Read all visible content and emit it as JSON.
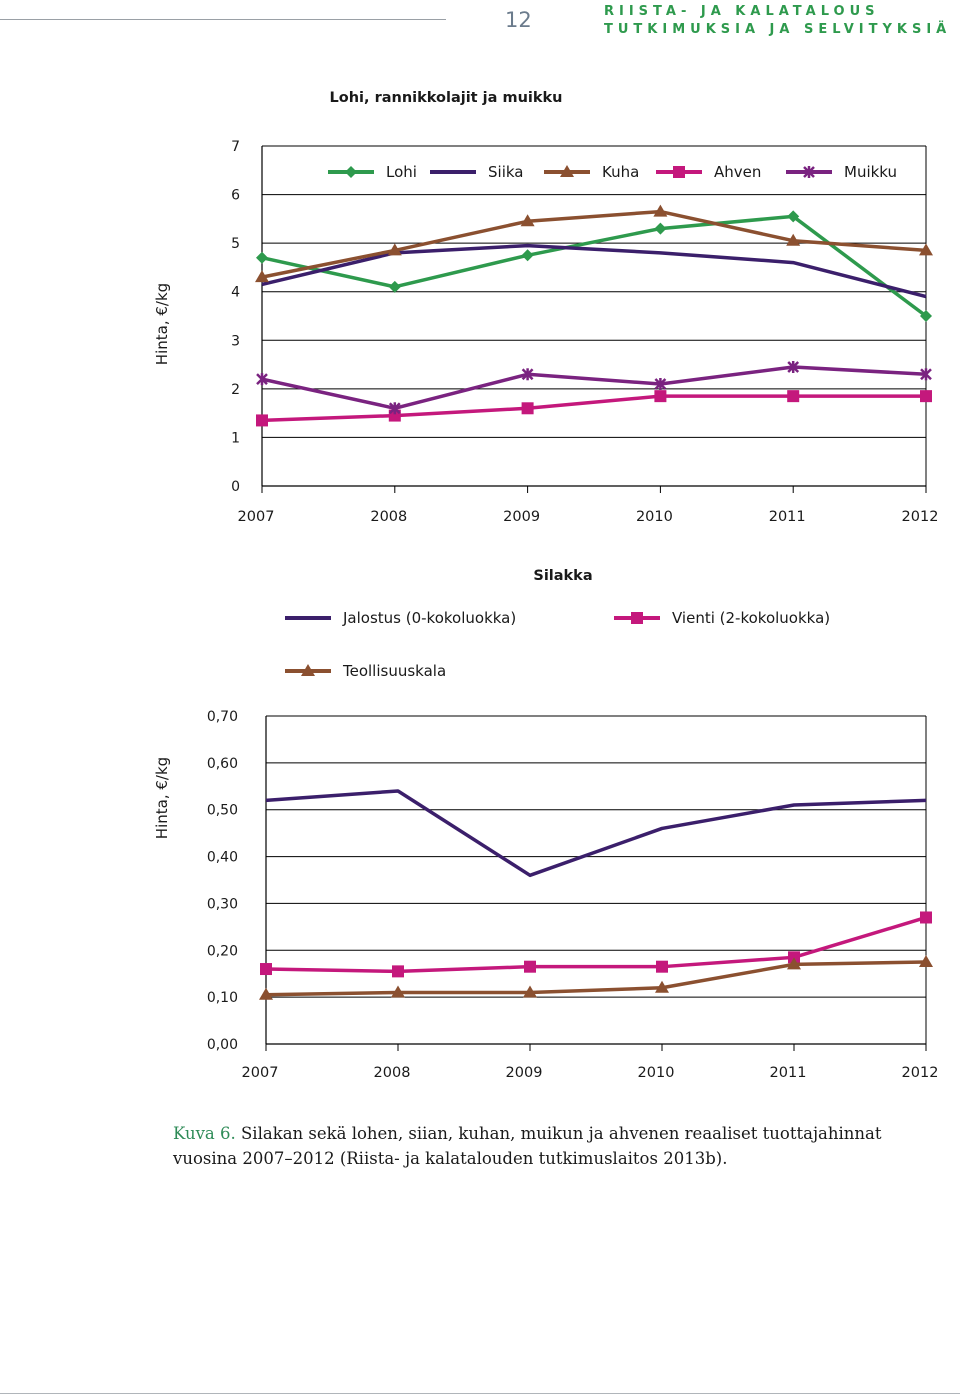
{
  "header": {
    "page_number": "12",
    "series_line1": "RIISTA- JA KALATALOUS",
    "series_line2": "TUTKIMUKSIA JA SELVITYKSIÄ"
  },
  "colors": {
    "green": "#2e9a4d",
    "navy": "#3b1f6b",
    "brown": "#8b5030",
    "magenta": "#c4187c",
    "purple": "#7a2380",
    "caption_label": "#2e8b57"
  },
  "chart_data": [
    {
      "type": "line",
      "title": "Lohi, rannikkolajit ja muikku",
      "ylabel": "Hinta, €/kg",
      "xlabel": "",
      "x": [
        "2007",
        "2008",
        "2009",
        "2010",
        "2011",
        "2012"
      ],
      "ylim": [
        0,
        7
      ],
      "yticks": [
        "0",
        "1",
        "2",
        "3",
        "4",
        "5",
        "6",
        "7"
      ],
      "grid": true,
      "legend_position": "top",
      "series": [
        {
          "name": "Lohi",
          "color": "#2e9a4d",
          "marker": "diamond",
          "values": [
            4.7,
            4.1,
            4.75,
            5.3,
            5.55,
            3.5
          ]
        },
        {
          "name": "Siika",
          "color": "#3b1f6b",
          "marker": "none",
          "values": [
            4.15,
            4.8,
            4.95,
            4.8,
            4.6,
            3.9
          ]
        },
        {
          "name": "Kuha",
          "color": "#8b5030",
          "marker": "triangle",
          "values": [
            4.3,
            4.85,
            5.45,
            5.65,
            5.05,
            4.85
          ]
        },
        {
          "name": "Ahven",
          "color": "#c4187c",
          "marker": "square",
          "values": [
            1.35,
            1.45,
            1.6,
            1.85,
            1.85,
            1.85
          ]
        },
        {
          "name": "Muikku",
          "color": "#7a2380",
          "marker": "asterisk",
          "values": [
            2.2,
            1.6,
            2.3,
            2.1,
            2.45,
            2.3
          ]
        }
      ]
    },
    {
      "type": "line",
      "title": "Silakka",
      "ylabel": "Hinta, €/kg",
      "xlabel": "",
      "x": [
        "2007",
        "2008",
        "2009",
        "2010",
        "2011",
        "2012"
      ],
      "ylim": [
        0,
        0.7
      ],
      "yticks": [
        "0,00",
        "0,10",
        "0,20",
        "0,30",
        "0,40",
        "0,50",
        "0,60",
        "0,70"
      ],
      "grid": true,
      "legend_position": "top",
      "series": [
        {
          "name": "Jalostus (0-kokoluokka)",
          "color": "#3b1f6b",
          "marker": "none",
          "values": [
            0.52,
            0.54,
            0.36,
            0.46,
            0.51,
            0.52
          ]
        },
        {
          "name": "Vienti (2-kokoluokka)",
          "color": "#c4187c",
          "marker": "square",
          "values": [
            0.16,
            0.155,
            0.165,
            0.165,
            0.185,
            0.27
          ]
        },
        {
          "name": "Teollisuuskala",
          "color": "#8b5030",
          "marker": "triangle",
          "values": [
            0.105,
            0.11,
            0.11,
            0.12,
            0.17,
            0.175
          ]
        }
      ]
    }
  ],
  "caption": {
    "label": "Kuva 6.",
    "text": " Silakan sekä lohen, siian, kuhan, muikun ja ahvenen reaaliset tuottajahinnat vuosina 2007–2012 (Riista- ja kalatalouden tutkimuslaitos 2013b)."
  }
}
